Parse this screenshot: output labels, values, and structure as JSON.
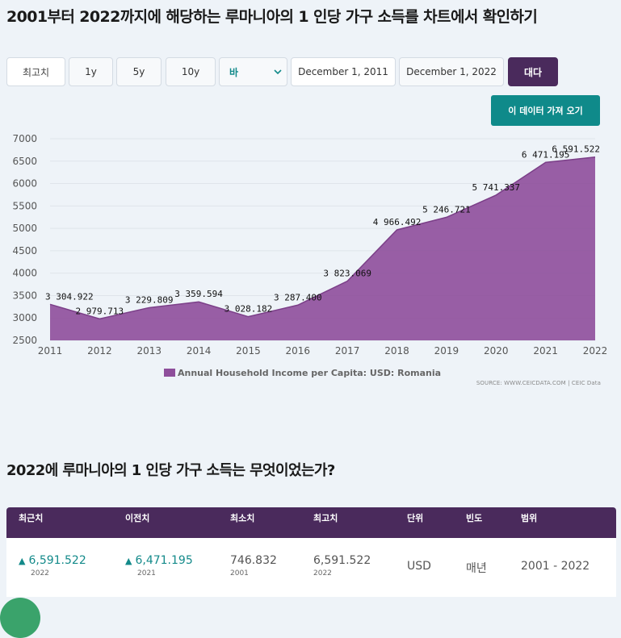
{
  "page_title": "2001부터 2022까지에 해당하는 루마니아의 1 인당 가구 소득를 차트에서 확인하기",
  "controls": {
    "max": "최고치",
    "y1": "1y",
    "y5": "5y",
    "y10": "10y",
    "chart_type": "바",
    "date_from": "December 1, 2011",
    "date_to": "December 1, 2022",
    "apply": "대다",
    "fetch_data": "이 데이터 가져 오기"
  },
  "chart_data": {
    "type": "area",
    "categories": [
      "2011",
      "2012",
      "2013",
      "2014",
      "2015",
      "2016",
      "2017",
      "2018",
      "2019",
      "2020",
      "2021",
      "2022"
    ],
    "series": [
      {
        "name": "Annual Household Income per Capita: USD: Romania",
        "values": [
          3304.922,
          2979.713,
          3229.809,
          3359.594,
          3028.182,
          3287.4,
          3823.069,
          4966.492,
          5246.721,
          5741.337,
          6471.195,
          6591.522
        ],
        "labels": [
          "3 304.922",
          "2 979.713",
          "3 229.809",
          "3 359.594",
          "3 028.182",
          "3 287.400",
          "3 823.069",
          "4 966.492",
          "5 246.721",
          "5 741.337",
          "6 471.195",
          "6 591.522"
        ]
      }
    ],
    "yticks": [
      2500,
      3000,
      3500,
      4000,
      4500,
      5000,
      5500,
      6000,
      6500,
      7000
    ],
    "ylim": [
      2500,
      7000
    ],
    "legend_position": "bottom-center",
    "color": "#8e4e9b"
  },
  "source": "SOURCE: WWW.CEICDATA.COM | CEIC Data",
  "section2_title": "2022에 루마니아의 1 인당 가구 소득는 무엇이었는가?",
  "table": {
    "headers": [
      "최근치",
      "이전치",
      "최소치",
      "최고치",
      "단위",
      "빈도",
      "범위"
    ],
    "latest": {
      "value": "6,591.522",
      "year": "2022"
    },
    "previous": {
      "value": "6,471.195",
      "year": "2021"
    },
    "min": {
      "value": "746.832",
      "year": "2001"
    },
    "max": {
      "value": "6,591.522",
      "year": "2022"
    },
    "unit": "USD",
    "frequency": "매년",
    "range": "2001 - 2022",
    "up_glyph": "▲"
  }
}
